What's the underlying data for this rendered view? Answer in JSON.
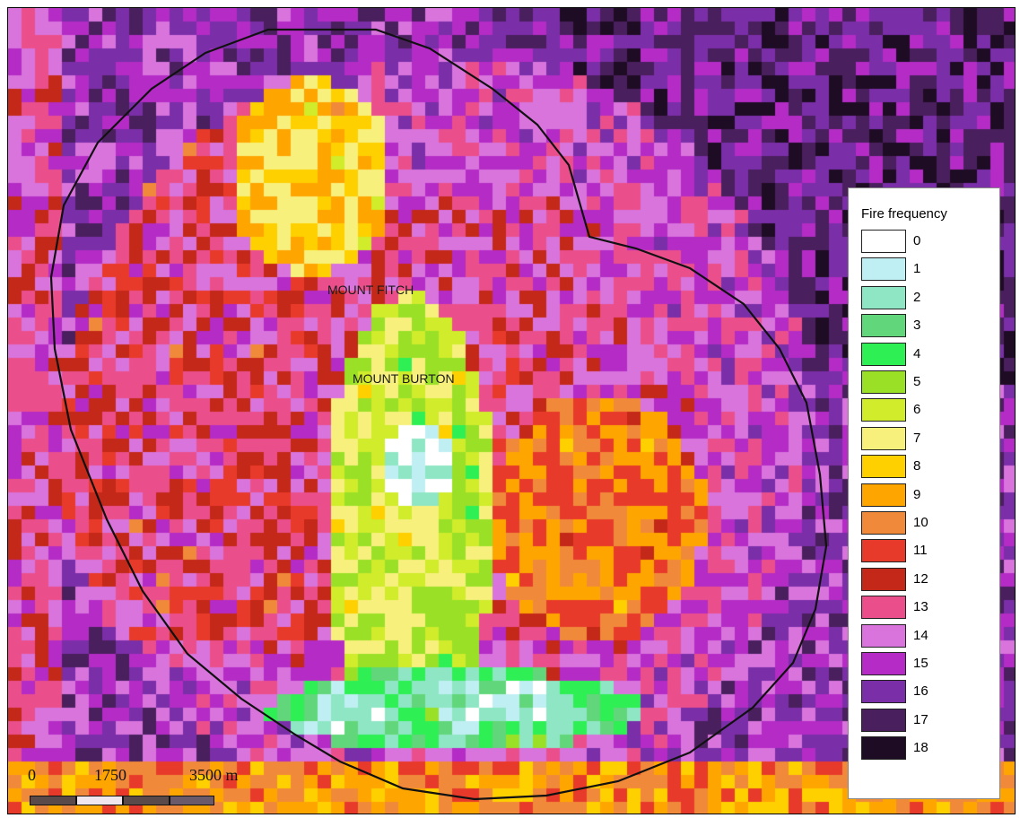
{
  "map": {
    "labels": {
      "mount_fitch": "MOUNT FITCH",
      "mount_burton": "MOUNT BURTON"
    }
  },
  "legend": {
    "title": "Fire frequency",
    "items": [
      {
        "label": "0",
        "color": "#ffffff"
      },
      {
        "label": "1",
        "color": "#bfeff2"
      },
      {
        "label": "2",
        "color": "#8fe6c4"
      },
      {
        "label": "3",
        "color": "#62d67a"
      },
      {
        "label": "4",
        "color": "#2ef055"
      },
      {
        "label": "5",
        "color": "#9ae027"
      },
      {
        "label": "6",
        "color": "#d0ec2a"
      },
      {
        "label": "7",
        "color": "#f7f07c"
      },
      {
        "label": "8",
        "color": "#ffd000"
      },
      {
        "label": "9",
        "color": "#ffa500"
      },
      {
        "label": "10",
        "color": "#f08a3a"
      },
      {
        "label": "11",
        "color": "#e83a2a"
      },
      {
        "label": "12",
        "color": "#c42818"
      },
      {
        "label": "13",
        "color": "#ea4f8c"
      },
      {
        "label": "14",
        "color": "#d874dc"
      },
      {
        "label": "15",
        "color": "#b52bc6"
      },
      {
        "label": "16",
        "color": "#7a2ea8"
      },
      {
        "label": "17",
        "color": "#4a1f5e"
      },
      {
        "label": "18",
        "color": "#1e0c24"
      }
    ]
  },
  "scalebar": {
    "labels": [
      "0",
      "1750",
      "3500 m"
    ],
    "segment_colors": [
      "#5b4a4a",
      "#f0e6ee",
      "#5b4a4a",
      "#6b5a6a"
    ]
  }
}
